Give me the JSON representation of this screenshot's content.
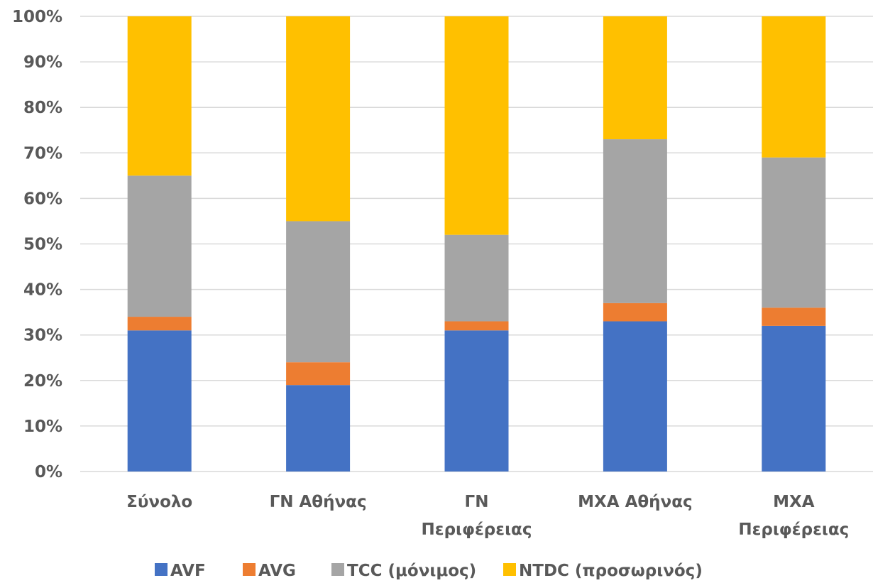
{
  "chart_data": {
    "type": "bar",
    "stacked": true,
    "percent": true,
    "categories": [
      [
        "Σύνολο"
      ],
      [
        "ΓΝ Αθήνας"
      ],
      [
        "ΓΝ",
        "Περιφέρειας"
      ],
      [
        "ΜΧΑ Αθήνας"
      ],
      [
        "ΜΧΑ",
        "Περιφέρειας"
      ]
    ],
    "series": [
      {
        "name": "AVF",
        "color": "#4472C4",
        "values": [
          31,
          19,
          31,
          33,
          32
        ]
      },
      {
        "name": "AVG",
        "color": "#ED7D31",
        "values": [
          3,
          5,
          2,
          4,
          4
        ]
      },
      {
        "name": "TCC (μόνιμος)",
        "color": "#A5A5A5",
        "values": [
          31,
          31,
          19,
          36,
          33
        ]
      },
      {
        "name": "NTDC (προσωρινός)",
        "color": "#FFC000",
        "values": [
          35,
          45,
          48,
          27,
          31
        ]
      }
    ],
    "ylim": [
      0,
      100
    ],
    "yticks": [
      "0%",
      "10%",
      "20%",
      "30%",
      "40%",
      "50%",
      "60%",
      "70%",
      "80%",
      "90%",
      "100%"
    ],
    "grid": true,
    "legend_position": "bottom",
    "title": "",
    "xlabel": "",
    "ylabel": ""
  }
}
